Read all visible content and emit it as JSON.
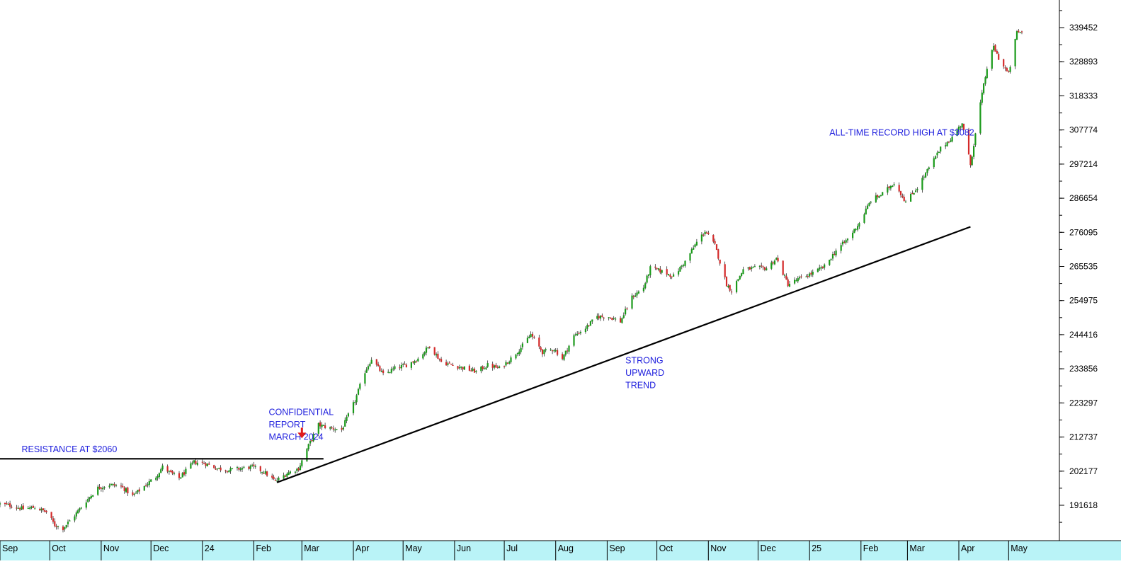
{
  "chart_data": {
    "type": "candlestick",
    "title": "",
    "xlabel": "",
    "ylabel": "",
    "y_axis_position": "right",
    "ylim": [
      184000,
      350800
    ],
    "y_ticks": [
      191618,
      202177,
      212737,
      223297,
      233856,
      244416,
      254975,
      265535,
      276095,
      286654,
      297214,
      307774,
      318333,
      328893,
      339452
    ],
    "x_ticks": [
      "Sep",
      "Oct",
      "Nov",
      "Dec",
      "24",
      "Feb",
      "Mar",
      "Apr",
      "May",
      "Jun",
      "Jul",
      "Aug",
      "Sep",
      "Oct",
      "Nov",
      "Dec",
      "25",
      "Feb",
      "Mar",
      "Apr",
      "May"
    ],
    "x_range": [
      "2023-09-01",
      "2025-05-09"
    ],
    "grid": false,
    "up_color": "#1a9a1a",
    "down_color": "#d42a2a",
    "axis_band_color": "#b9f3f7",
    "series": [
      {
        "type": "close_path_approx",
        "points": [
          [
            "2023-09-01",
            192000
          ],
          [
            "2023-09-08",
            191500
          ],
          [
            "2023-09-15",
            190500
          ],
          [
            "2023-09-22",
            191000
          ],
          [
            "2023-09-29",
            189500
          ],
          [
            "2023-10-04",
            185500
          ],
          [
            "2023-10-09",
            184500
          ],
          [
            "2023-10-16",
            188500
          ],
          [
            "2023-10-23",
            193000
          ],
          [
            "2023-10-30",
            197000
          ],
          [
            "2023-11-06",
            198000
          ],
          [
            "2023-11-13",
            197500
          ],
          [
            "2023-11-20",
            194500
          ],
          [
            "2023-11-27",
            197500
          ],
          [
            "2023-12-04",
            200500
          ],
          [
            "2023-12-08",
            203500
          ],
          [
            "2023-12-13",
            201500
          ],
          [
            "2023-12-18",
            200000
          ],
          [
            "2023-12-27",
            205000
          ],
          [
            "2024-01-03",
            204500
          ],
          [
            "2024-01-10",
            203000
          ],
          [
            "2024-01-17",
            202500
          ],
          [
            "2024-01-24",
            203000
          ],
          [
            "2024-01-31",
            203500
          ],
          [
            "2024-02-07",
            202000
          ],
          [
            "2024-02-14",
            199000
          ],
          [
            "2024-02-21",
            201500
          ],
          [
            "2024-02-28",
            203000
          ],
          [
            "2024-03-04",
            209000
          ],
          [
            "2024-03-11",
            216500
          ],
          [
            "2024-03-18",
            215500
          ],
          [
            "2024-03-25",
            215000
          ],
          [
            "2024-04-02",
            224000
          ],
          [
            "2024-04-08",
            233000
          ],
          [
            "2024-04-12",
            237000
          ],
          [
            "2024-04-19",
            232000
          ],
          [
            "2024-04-26",
            234000
          ],
          [
            "2024-05-03",
            235000
          ],
          [
            "2024-05-10",
            237000
          ],
          [
            "2024-05-17",
            241000
          ],
          [
            "2024-05-24",
            236000
          ],
          [
            "2024-05-31",
            235000
          ],
          [
            "2024-06-07",
            234000
          ],
          [
            "2024-06-14",
            233000
          ],
          [
            "2024-06-21",
            235000
          ],
          [
            "2024-06-28",
            234000
          ],
          [
            "2024-07-05",
            237000
          ],
          [
            "2024-07-12",
            241000
          ],
          [
            "2024-07-17",
            244500
          ],
          [
            "2024-07-24",
            239000
          ],
          [
            "2024-07-31",
            240000
          ],
          [
            "2024-08-05",
            237000
          ],
          [
            "2024-08-12",
            244000
          ],
          [
            "2024-08-19",
            246500
          ],
          [
            "2024-08-26",
            250000
          ],
          [
            "2024-09-02",
            250000
          ],
          [
            "2024-09-09",
            248500
          ],
          [
            "2024-09-16",
            256000
          ],
          [
            "2024-09-23",
            259000
          ],
          [
            "2024-09-27",
            265000
          ],
          [
            "2024-10-04",
            264000
          ],
          [
            "2024-10-11",
            262500
          ],
          [
            "2024-10-18",
            267000
          ],
          [
            "2024-10-25",
            273000
          ],
          [
            "2024-10-30",
            276500
          ],
          [
            "2024-11-05",
            272000
          ],
          [
            "2024-11-12",
            260000
          ],
          [
            "2024-11-15",
            258000
          ],
          [
            "2024-11-22",
            264500
          ],
          [
            "2024-11-29",
            265000
          ],
          [
            "2024-12-06",
            265000
          ],
          [
            "2024-12-12",
            268000
          ],
          [
            "2024-12-19",
            260000
          ],
          [
            "2024-12-27",
            262000
          ],
          [
            "2025-01-03",
            263500
          ],
          [
            "2025-01-10",
            265500
          ],
          [
            "2025-01-17",
            270500
          ],
          [
            "2025-01-24",
            274000
          ],
          [
            "2025-01-31",
            279000
          ],
          [
            "2025-02-07",
            286000
          ],
          [
            "2025-02-14",
            288000
          ],
          [
            "2025-02-21",
            291500
          ],
          [
            "2025-02-28",
            285500
          ],
          [
            "2025-03-07",
            290000
          ],
          [
            "2025-03-14",
            296000
          ],
          [
            "2025-03-21",
            302000
          ],
          [
            "2025-03-28",
            305500
          ],
          [
            "2025-04-03",
            310000
          ],
          [
            "2025-04-08",
            297000
          ],
          [
            "2025-04-14",
            316000
          ],
          [
            "2025-04-18",
            327000
          ],
          [
            "2025-04-22",
            333500
          ],
          [
            "2025-04-25",
            330000
          ],
          [
            "2025-05-01",
            325000
          ],
          [
            "2025-05-06",
            338000
          ]
        ]
      }
    ],
    "lines": [
      {
        "name": "resistance",
        "start": [
          "2023-09-01",
          206000
        ],
        "end": [
          "2024-03-14",
          206000
        ]
      },
      {
        "name": "trend",
        "start": [
          "2024-02-15",
          198700
        ],
        "end": [
          "2025-04-08",
          277800
        ]
      }
    ],
    "annotations": [
      {
        "name": "resistance-label",
        "text": "RESISTANCE AT $2060",
        "at": [
          "2023-09-14",
          208000
        ]
      },
      {
        "name": "confidential-label",
        "lines": [
          "CONFIDENTIAL",
          "REPORT",
          "MARCH 2024"
        ],
        "at": [
          "2024-02-10",
          219500
        ]
      },
      {
        "name": "trend-label",
        "lines": [
          "STRONG",
          "UPWARD",
          "TREND"
        ],
        "at": [
          "2024-09-12",
          235500
        ]
      },
      {
        "name": "record-label",
        "text": "ALL-TIME RECORD HIGH AT $3082",
        "at": [
          "2025-01-13",
          306000
        ]
      },
      {
        "name": "report-arrow",
        "at": [
          "2024-03-01",
          213000
        ]
      }
    ]
  }
}
